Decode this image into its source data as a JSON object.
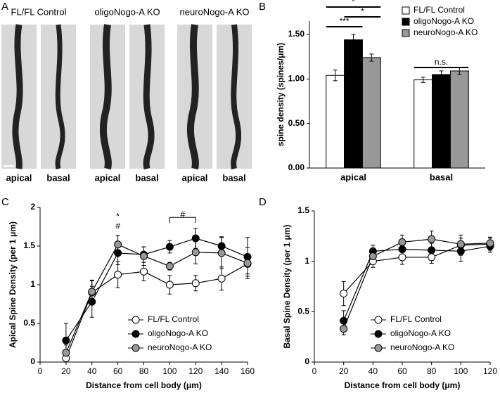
{
  "figure": {
    "panel_labels": [
      "A",
      "B",
      "C",
      "D"
    ],
    "image_panel": {
      "groups": [
        "FL/FL Control",
        "oligoNogo-A KO",
        "neuroNogo-A KO"
      ],
      "cell_labels": [
        "apical",
        "basal",
        "apical",
        "basal",
        "apical",
        "basal"
      ]
    }
  },
  "chart_data": [
    {
      "type": "bar",
      "ylabel": "spine density (spines/μm)",
      "categories": [
        "apical",
        "basal"
      ],
      "series": [
        {
          "name": "FL/FL Control",
          "color": "#ffffff",
          "values": [
            1.04,
            0.99
          ],
          "errors": [
            0.06,
            0.03
          ]
        },
        {
          "name": "oligoNogo-A KO",
          "color": "#000000",
          "values": [
            1.44,
            1.05
          ],
          "errors": [
            0.06,
            0.04
          ]
        },
        {
          "name": "neuroNogo-A KO",
          "color": "#999999",
          "values": [
            1.24,
            1.09
          ],
          "errors": [
            0.04,
            0.04
          ]
        }
      ],
      "ylim": [
        0,
        1.65
      ],
      "yticks": [
        {
          "value": 0,
          "label": "0.00"
        },
        {
          "value": 0.5,
          "label": "0.50"
        },
        {
          "value": 1,
          "label": "1.00"
        },
        {
          "value": 1.5,
          "label": "1.50"
        }
      ],
      "annotations": [
        "***",
        "*",
        "*",
        "n.s."
      ],
      "legend": "top-right"
    },
    {
      "type": "line",
      "xlabel": "Distance from cell body (μm)",
      "ylabel": "Apical Spine Density (per 1 μm)",
      "x": [
        20,
        40,
        60,
        80,
        100,
        120,
        140,
        160
      ],
      "series": [
        {
          "name": "FL/FL Control",
          "color": "#ffffff",
          "values": [
            0.05,
            0.9,
            1.13,
            1.17,
            1.0,
            1.02,
            1.08,
            1.27
          ],
          "errors": [
            0.05,
            0.15,
            0.17,
            0.12,
            0.12,
            0.1,
            0.15,
            0.13
          ]
        },
        {
          "name": "oligoNogo-A KO",
          "color": "#000000",
          "values": [
            0.28,
            0.78,
            1.41,
            1.39,
            1.49,
            1.6,
            1.5,
            1.36
          ],
          "errors": [
            0.22,
            0.2,
            0.15,
            0.1,
            0.08,
            0.13,
            0.12,
            0.25
          ]
        },
        {
          "name": "neuroNogo-A KO",
          "color": "#999999",
          "values": [
            0.12,
            0.91,
            1.52,
            1.37,
            1.24,
            1.42,
            1.41,
            1.28
          ],
          "errors": [
            0.1,
            0.15,
            0.12,
            0.12,
            0.05,
            0.15,
            0.2,
            0.2
          ]
        }
      ],
      "xlim": [
        0,
        160
      ],
      "xticks": [
        0,
        20,
        40,
        60,
        80,
        100,
        120,
        140,
        160
      ],
      "ylim": [
        0,
        2
      ],
      "yticks": [
        0,
        0.5,
        1,
        1.5,
        2
      ],
      "annotations": [
        "*",
        "#",
        "#"
      ],
      "legend": "bottom-right"
    },
    {
      "type": "line",
      "xlabel": "Distance from cell body (μm)",
      "ylabel": "Basal Spine Density (per 1 μm)",
      "x": [
        20,
        40,
        60,
        80,
        100,
        120
      ],
      "series": [
        {
          "name": "FL/FL Control",
          "color": "#ffffff",
          "values": [
            0.68,
            1.0,
            1.04,
            1.04,
            1.16,
            1.17
          ],
          "errors": [
            0.12,
            0.06,
            0.07,
            0.06,
            0.1,
            0.06
          ]
        },
        {
          "name": "oligoNogo-A KO",
          "color": "#000000",
          "values": [
            0.41,
            1.1,
            1.12,
            1.11,
            1.1,
            1.15
          ],
          "errors": [
            0.1,
            0.06,
            0.06,
            0.07,
            0.1,
            0.06
          ]
        },
        {
          "name": "neuroNogo-A KO",
          "color": "#999999",
          "values": [
            0.33,
            1.05,
            1.19,
            1.22,
            1.17,
            1.18
          ],
          "errors": [
            0.06,
            0.06,
            0.07,
            0.08,
            0.06,
            0.06
          ]
        }
      ],
      "xlim": [
        0,
        120
      ],
      "xticks": [
        0,
        20,
        40,
        60,
        80,
        100,
        120
      ],
      "ylim": [
        0,
        1.5
      ],
      "yticks": [
        0,
        0.5,
        1,
        1.5
      ],
      "legend": "bottom-right"
    }
  ]
}
